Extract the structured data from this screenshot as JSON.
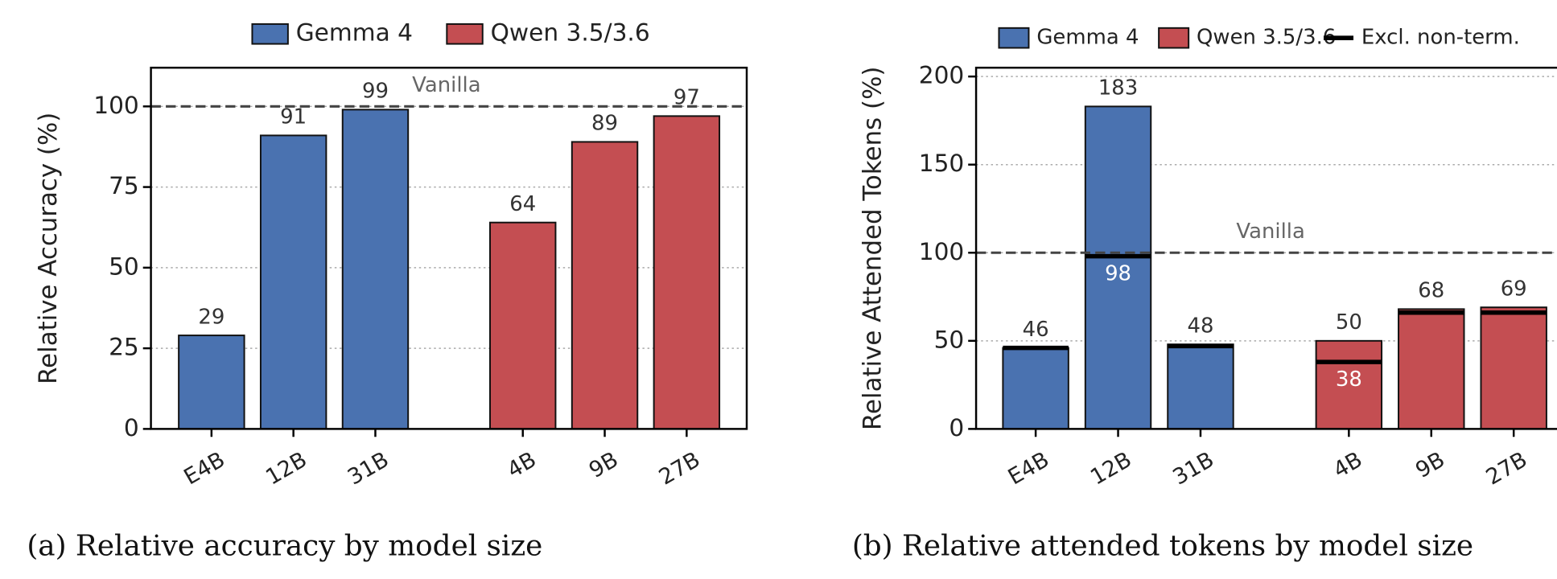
{
  "chart_data": [
    {
      "type": "bar",
      "caption": "(a) Relative accuracy by model size",
      "ylabel": "Relative Accuracy (%)",
      "categories": [
        "E4B",
        "12B",
        "31B",
        "4B",
        "9B",
        "27B"
      ],
      "series": [
        {
          "name": "Gemma 4",
          "color": "#4a72b0",
          "values": [
            29,
            91,
            99,
            null,
            null,
            null
          ]
        },
        {
          "name": "Qwen 3.5/3.6",
          "color": "#c44e52",
          "values": [
            null,
            null,
            null,
            64,
            89,
            97
          ]
        }
      ],
      "ylim": [
        0,
        112
      ],
      "yticks": [
        0,
        25,
        50,
        75,
        100
      ],
      "grid": true,
      "reference": {
        "value": 100,
        "label": "Vanilla"
      }
    },
    {
      "type": "bar",
      "caption": "(b) Relative attended tokens by model size",
      "ylabel": "Relative Attended Tokens (%)",
      "categories": [
        "E4B",
        "12B",
        "31B",
        "4B",
        "9B",
        "27B"
      ],
      "series": [
        {
          "name": "Gemma 4",
          "color": "#4a72b0",
          "values": [
            46,
            183,
            48,
            null,
            null,
            null
          ]
        },
        {
          "name": "Qwen 3.5/3.6",
          "color": "#c44e52",
          "values": [
            null,
            null,
            null,
            50,
            68,
            69
          ]
        },
        {
          "name": "Excl. non-term.",
          "color": "#000000",
          "marker": "hline",
          "values": [
            46,
            98,
            47,
            38,
            66,
            66
          ],
          "value_labels": [
            null,
            "98",
            null,
            "38",
            null,
            null
          ]
        }
      ],
      "ylim": [
        0,
        205
      ],
      "yticks": [
        0,
        50,
        100,
        150,
        200
      ],
      "grid": true,
      "reference": {
        "value": 100,
        "label": "Vanilla"
      }
    }
  ]
}
